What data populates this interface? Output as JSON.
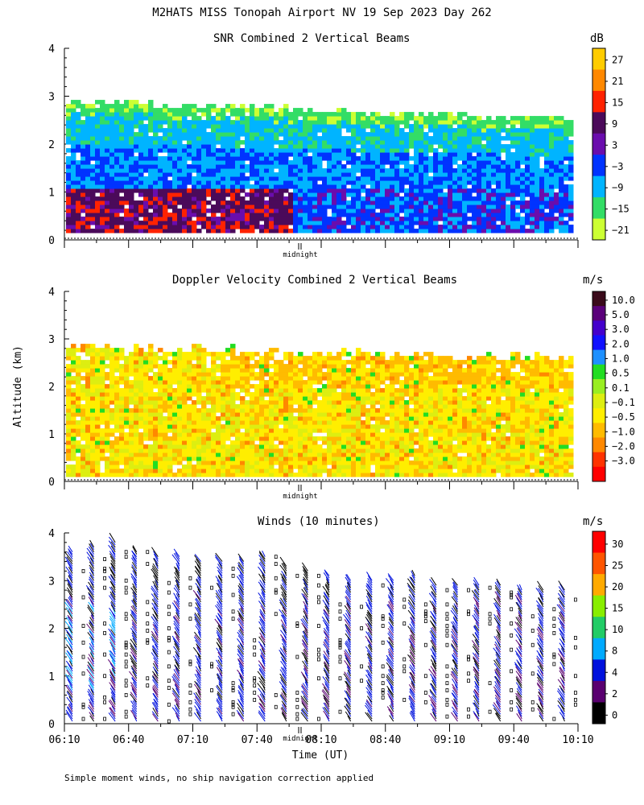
{
  "figure": {
    "title": "M2HATS MISS Tonopah Airport NV  19 Sep 2023 Day 262",
    "footnote": "Simple moment winds, no ship navigation correction applied",
    "ylabel": "Altitude (km)",
    "xlabel": "Time (UT)",
    "midnight_label": "midnight",
    "x_ticks": [
      "06:10",
      "06:40",
      "07:10",
      "07:40",
      "08:10",
      "08:40",
      "09:10",
      "09:40",
      "10:10"
    ],
    "y_ticks": [
      "0",
      "1",
      "2",
      "3",
      "4"
    ]
  },
  "chart_data": [
    {
      "type": "heatmap",
      "title": "SNR Combined 2 Vertical Beams",
      "units": "dB",
      "ylim": [
        0,
        4
      ],
      "xlim": [
        "06:10",
        "10:10"
      ],
      "colorbar": {
        "labels": [
          "27",
          "21",
          "15",
          "9",
          "3",
          "−3",
          "−9",
          "−15",
          "−21"
        ],
        "colors": [
          "#ffcc00",
          "#ff8800",
          "#ff2200",
          "#4b0a5a",
          "#6a0dad",
          "#0033ff",
          "#00b4ff",
          "#33dd66",
          "#ccff33"
        ]
      },
      "bands": [
        {
          "name": "top_echo",
          "start_km": 2.8,
          "end_km": 3.1,
          "level_db": -15
        },
        {
          "name": "cloud_layer",
          "start_km": 1.9,
          "end_km": 2.7,
          "level_db": -9
        },
        {
          "name": "mid_layer",
          "start_km": 1.0,
          "end_km": 1.9,
          "level_db": -3
        },
        {
          "name": "boundary_layer",
          "start_km": 0.2,
          "end_km": 1.0,
          "level_db": 9
        }
      ]
    },
    {
      "type": "heatmap",
      "title": "Doppler Velocity Combined 2 Vertical Beams",
      "units": "m/s",
      "ylim": [
        0,
        4
      ],
      "xlim": [
        "06:10",
        "10:10"
      ],
      "colorbar": {
        "labels": [
          "10.0",
          "5.0",
          "3.0",
          "2.0",
          "1.0",
          "0.5",
          "0.1",
          "−0.1",
          "−0.5",
          "−1.0",
          "−2.0",
          "−3.0"
        ],
        "colors": [
          "#3a0a1a",
          "#5a007a",
          "#4400cc",
          "#1111ff",
          "#1e90ff",
          "#22dd22",
          "#99ee22",
          "#ddee11",
          "#ffee00",
          "#ffbb00",
          "#ff8800",
          "#ff3300",
          "#ff0000"
        ]
      },
      "bands": [
        {
          "name": "upper_layer",
          "start_km": 1.9,
          "end_km": 2.8,
          "level_ms": -0.5
        },
        {
          "name": "lower_layer",
          "start_km": 0.1,
          "end_km": 1.9,
          "level_ms": -1.0
        }
      ]
    },
    {
      "type": "scatter",
      "title": "Winds (10 minutes)",
      "units": "m/s",
      "ylim": [
        0,
        4
      ],
      "xlim": [
        "06:10",
        "10:10"
      ],
      "marker": "wind-barb",
      "colorbar": {
        "labels": [
          "30",
          "25",
          "20",
          "15",
          "10",
          "8",
          "4",
          "2",
          "0"
        ],
        "colors": [
          "#ff0000",
          "#ff5500",
          "#ffaa00",
          "#88ee00",
          "#22cc66",
          "#00aaff",
          "#0011dd",
          "#5a0070",
          "#000000"
        ]
      },
      "profiles": [
        {
          "time": "06:10",
          "top_km": 3.6
        },
        {
          "time": "06:20",
          "top_km": 3.7
        },
        {
          "time": "06:30",
          "top_km": 3.8
        },
        {
          "time": "06:40",
          "top_km": 3.6
        },
        {
          "time": "06:50",
          "top_km": 3.5
        },
        {
          "time": "07:00",
          "top_km": 3.5
        },
        {
          "time": "07:10",
          "top_km": 3.4
        },
        {
          "time": "07:20",
          "top_km": 3.4
        },
        {
          "time": "07:30",
          "top_km": 3.4
        },
        {
          "time": "07:40",
          "top_km": 3.5
        },
        {
          "time": "07:50",
          "top_km": 3.3
        },
        {
          "time": "08:00",
          "top_km": 3.2
        },
        {
          "time": "08:10",
          "top_km": 3.1
        },
        {
          "time": "08:20",
          "top_km": 3.0
        },
        {
          "time": "08:30",
          "top_km": 3.0
        },
        {
          "time": "08:40",
          "top_km": 3.0
        },
        {
          "time": "08:50",
          "top_km": 3.1
        },
        {
          "time": "09:00",
          "top_km": 2.9
        },
        {
          "time": "09:10",
          "top_km": 2.9
        },
        {
          "time": "09:20",
          "top_km": 2.9
        },
        {
          "time": "09:30",
          "top_km": 2.9
        },
        {
          "time": "09:40",
          "top_km": 2.8
        },
        {
          "time": "09:50",
          "top_km": 2.8
        },
        {
          "time": "10:00",
          "top_km": 2.8
        }
      ]
    }
  ]
}
